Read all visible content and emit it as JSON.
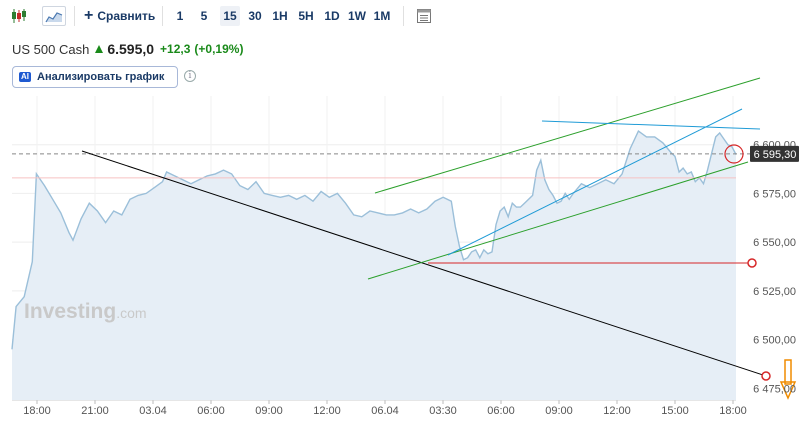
{
  "toolbar": {
    "compare_label": "Сравнить",
    "timeframes": [
      "1",
      "5",
      "15",
      "30",
      "1H",
      "5H",
      "1D",
      "1W",
      "1M"
    ],
    "active_timeframe": "15"
  },
  "quote": {
    "name": "US 500 Cash",
    "price": "6.595,0",
    "change": "+12,3",
    "change_pct": "(+0,19%)",
    "up_color": "#1a8a1a"
  },
  "ai_button": {
    "badge": "AI",
    "label": "Анализировать график"
  },
  "info_glyph": "i",
  "watermark": {
    "brand": "Investing",
    "suffix": ".com"
  },
  "chart_data": {
    "type": "area",
    "x_tick_labels": [
      "18:00",
      "21:00",
      "03.04",
      "06:00",
      "09:00",
      "12:00",
      "06.04",
      "03:30",
      "06:00",
      "09:00",
      "12:00",
      "15:00",
      "18:00"
    ],
    "y_tick_values": [
      6475,
      6500,
      6525,
      6550,
      6575,
      6600
    ],
    "y_tick_labels": [
      "6 475,00",
      "6 500,00",
      "6 525,00",
      "6 550,00",
      "6 575,00",
      "6 600,00"
    ],
    "ylim": [
      6469,
      6625
    ],
    "x_count": 170,
    "series": [
      {
        "values": [
          [
            0,
            6495
          ],
          [
            1,
            6517
          ],
          [
            3,
            6522
          ],
          [
            5,
            6540
          ],
          [
            6,
            6585
          ],
          [
            8,
            6579
          ],
          [
            10,
            6572
          ],
          [
            12,
            6565
          ],
          [
            14,
            6555
          ],
          [
            15,
            6551
          ],
          [
            17,
            6562
          ],
          [
            19,
            6570
          ],
          [
            21,
            6566
          ],
          [
            23,
            6560
          ],
          [
            25,
            6566
          ],
          [
            27,
            6564
          ],
          [
            29,
            6572
          ],
          [
            31,
            6574
          ],
          [
            33,
            6575
          ],
          [
            35,
            6578
          ],
          [
            37,
            6581
          ],
          [
            38,
            6586
          ],
          [
            40,
            6584
          ],
          [
            42,
            6582
          ],
          [
            44,
            6580
          ],
          [
            46,
            6582
          ],
          [
            48,
            6584
          ],
          [
            50,
            6585
          ],
          [
            52,
            6587
          ],
          [
            54,
            6585
          ],
          [
            56,
            6579
          ],
          [
            58,
            6577
          ],
          [
            60,
            6581
          ],
          [
            62,
            6575
          ],
          [
            64,
            6574
          ],
          [
            66,
            6573
          ],
          [
            68,
            6574
          ],
          [
            70,
            6572
          ],
          [
            72,
            6574
          ],
          [
            74,
            6571
          ],
          [
            76,
            6576
          ],
          [
            78,
            6573
          ],
          [
            80,
            6575
          ],
          [
            82,
            6570
          ],
          [
            84,
            6564
          ],
          [
            86,
            6563
          ],
          [
            88,
            6566
          ],
          [
            90,
            6565
          ],
          [
            92,
            6564
          ],
          [
            94,
            6564
          ],
          [
            96,
            6565
          ],
          [
            98,
            6567
          ],
          [
            100,
            6565
          ],
          [
            102,
            6567
          ],
          [
            104,
            6571
          ],
          [
            106,
            6573
          ],
          [
            108,
            6571
          ],
          [
            109,
            6558
          ],
          [
            110,
            6548
          ],
          [
            111,
            6541
          ],
          [
            112,
            6542
          ],
          [
            113,
            6545
          ],
          [
            114,
            6546
          ],
          [
            115,
            6542
          ],
          [
            116,
            6546
          ],
          [
            117,
            6544
          ],
          [
            118,
            6545
          ],
          [
            119,
            6559
          ],
          [
            120,
            6566
          ],
          [
            121,
            6568
          ],
          [
            122,
            6563
          ],
          [
            123,
            6570
          ],
          [
            124,
            6568
          ],
          [
            125,
            6568
          ],
          [
            126,
            6570
          ],
          [
            128,
            6574
          ],
          [
            129,
            6587
          ],
          [
            130,
            6592
          ],
          [
            131,
            6582
          ],
          [
            132,
            6577
          ],
          [
            133,
            6574
          ],
          [
            134,
            6570
          ],
          [
            135,
            6571
          ],
          [
            136,
            6575
          ],
          [
            137,
            6572
          ],
          [
            138,
            6575
          ],
          [
            140,
            6580
          ],
          [
            142,
            6578
          ],
          [
            144,
            6580
          ],
          [
            146,
            6582
          ],
          [
            148,
            6580
          ],
          [
            150,
            6585
          ],
          [
            152,
            6598
          ],
          [
            154,
            6607
          ],
          [
            156,
            6604
          ],
          [
            158,
            6604
          ],
          [
            160,
            6601
          ],
          [
            162,
            6596
          ],
          [
            163,
            6594
          ],
          [
            164,
            6586
          ],
          [
            165,
            6588
          ],
          [
            166,
            6585
          ],
          [
            167,
            6586
          ],
          [
            168,
            6581
          ],
          [
            169,
            6583
          ],
          [
            170,
            6580
          ],
          [
            171,
            6587
          ],
          [
            173,
            6604
          ],
          [
            174,
            6606
          ],
          [
            175,
            6603
          ],
          [
            176,
            6600
          ],
          [
            177,
            6599
          ],
          [
            178,
            6595
          ]
        ]
      }
    ],
    "x_max": 190,
    "current_price_label": "6 595,30",
    "colors": {
      "line": "#9bbfd9",
      "fill": "#e6eef6",
      "price_label_bg": "#333333",
      "trend_black": "#000000",
      "trend_green": "#2ca02c",
      "trend_blue": "#1f9bd6",
      "horizontal_red": "#d62728",
      "marker_orange": "#f08c00"
    }
  }
}
